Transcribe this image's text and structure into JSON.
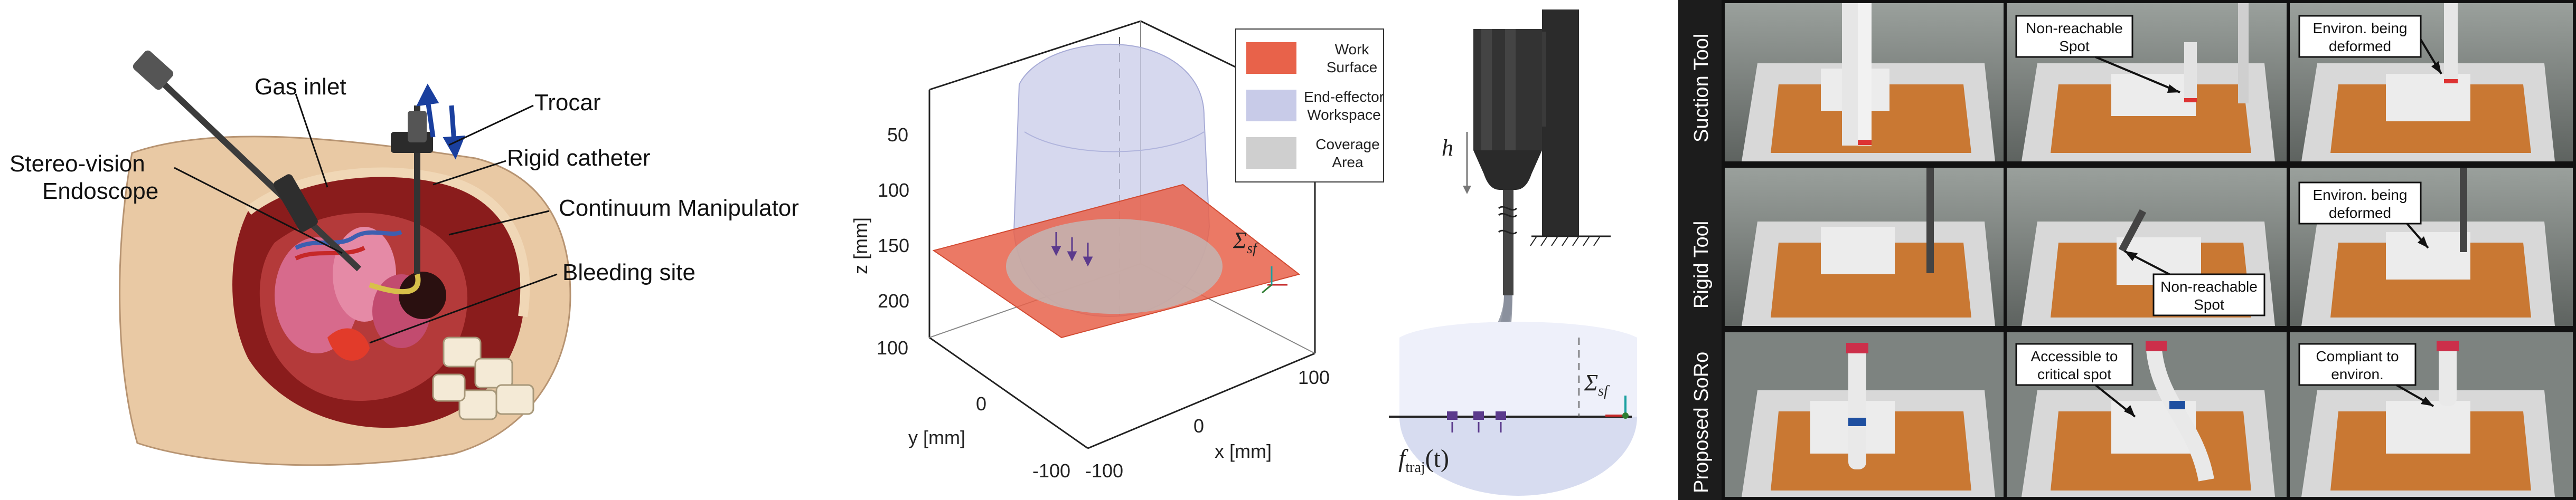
{
  "panel_a": {
    "labels": {
      "stereo_vision": "Stereo-vision",
      "endoscope": "Endoscope",
      "gas_inlet": "Gas inlet",
      "trocar": "Trocar",
      "rigid_catheter": "Rigid catheter",
      "continuum_manipulator": "Continuum Manipulator",
      "bleeding_site": "Bleeding site"
    }
  },
  "panel_b": {
    "z_axis_label": "z [mm]",
    "y_axis_label": "y [mm]",
    "x_axis_label": "x [mm]",
    "z_ticks": [
      "50",
      "100",
      "150",
      "200"
    ],
    "y_ticks": [
      "100",
      "0",
      "-100"
    ],
    "x_ticks": [
      "-100",
      "0",
      "100"
    ],
    "frame_label": "Σ",
    "frame_sub": "sf",
    "legend": [
      {
        "line1": "Work",
        "line2": "Surface",
        "color": "#e8624a"
      },
      {
        "line1": "End-effector",
        "line2": "Workspace",
        "color": "#c8cbe8"
      },
      {
        "line1": "Coverage",
        "line2": "Area",
        "color": "#cfcfcf"
      }
    ]
  },
  "panel_c": {
    "h_label": "h",
    "frame_label": "Σ",
    "frame_sub": "sf",
    "traj_label": "f",
    "traj_sub": "traj",
    "traj_arg": "(t)"
  },
  "panel_d": {
    "rows": [
      {
        "label": "Suction Tool",
        "callouts": [
          "",
          "Non-reachable Spot",
          "Environ. being deformed"
        ]
      },
      {
        "label": "Rigid Tool",
        "callouts": [
          "",
          "Non-reachable Spot",
          "Environ. being deformed"
        ]
      },
      {
        "label": "Proposed SoRo",
        "callouts": [
          "",
          "Accessible to critical spot",
          "Compliant to environ."
        ]
      }
    ],
    "callout_lines": {
      "r0c1": [
        "Non-reachable",
        "Spot"
      ],
      "r0c2": [
        "Environ. being",
        "deformed"
      ],
      "r1c1": [
        "Non-reachable",
        "Spot"
      ],
      "r1c2": [
        "Environ. being",
        "deformed"
      ],
      "r2c1": [
        "Accessible to",
        "critical spot"
      ],
      "r2c2": [
        "Compliant to",
        "environ."
      ]
    }
  }
}
